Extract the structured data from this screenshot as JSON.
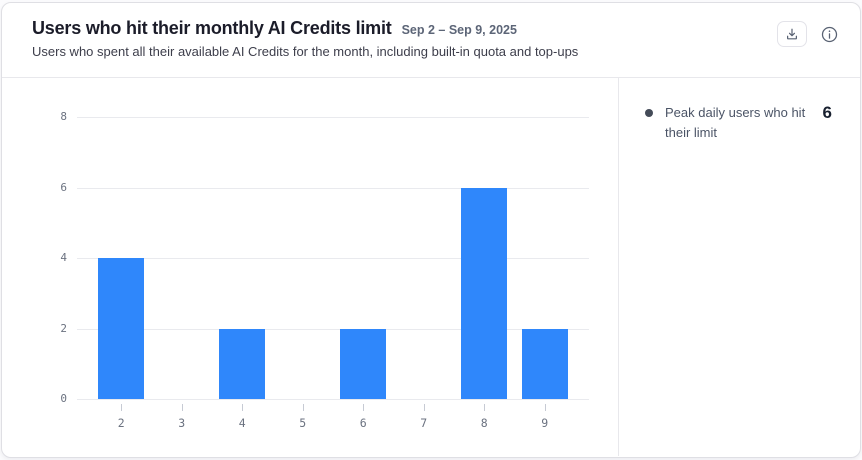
{
  "header": {
    "title": "Users who hit their monthly AI Credits limit",
    "date_range": "Sep 2 – Sep 9, 2025",
    "subtitle": "Users who spent all their available AI Credits for the month, including built-in quota and top-ups"
  },
  "toolbar": {
    "download_icon": "download-tray-icon",
    "info_icon": "info-circle-icon"
  },
  "side_panel": {
    "peak_label": "Peak daily users who hit their limit",
    "peak_value": "6"
  },
  "chart_data": {
    "type": "bar",
    "categories": [
      "2",
      "3",
      "4",
      "5",
      "6",
      "7",
      "8",
      "9"
    ],
    "values": [
      4,
      0,
      2,
      0,
      2,
      0,
      6,
      2
    ],
    "title": "Users who hit their monthly AI Credits limit",
    "xlabel": "",
    "ylabel": "",
    "ylim": [
      0,
      8
    ],
    "yticks": [
      0,
      2,
      4,
      6,
      8
    ],
    "grid": true,
    "bar_color": "#2f87fb",
    "legend": [
      "Peak daily users who hit their limit"
    ],
    "legend_position": "right"
  },
  "colors": {
    "accent": "#2f87fb",
    "grid": "#e9eaee",
    "axis_label": "#6b7280",
    "legend_dot": "#444b58"
  }
}
